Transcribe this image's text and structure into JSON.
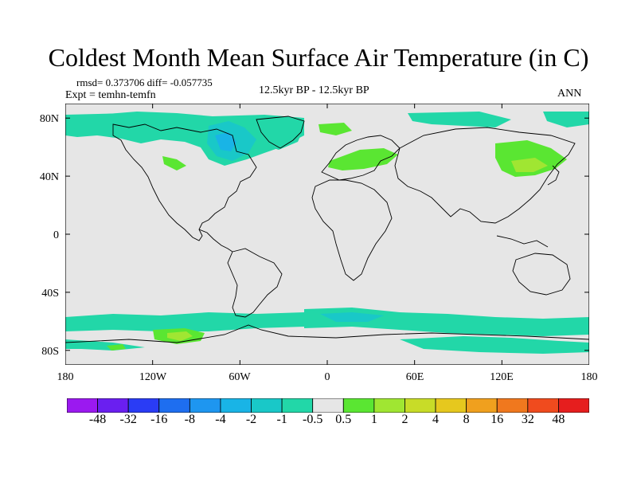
{
  "title": "Coldest Month Mean Surface Air Temperature (in C)",
  "stats": "rmsd= 0.373706 diff= -0.057735",
  "expt": "Expt = temhn-temfn",
  "period": "12.5kyr BP - 12.5kyr BP",
  "season": "ANN",
  "map": {
    "lon_range": [
      -180,
      180
    ],
    "lat_range": [
      -90,
      90
    ],
    "y_ticks": [
      "80N",
      "40N",
      "0",
      "40S",
      "80S"
    ],
    "x_ticks": [
      "180",
      "120W",
      "60W",
      "0",
      "60E",
      "120E",
      "180"
    ],
    "background_color": "#e6e6e6"
  },
  "colorbar": {
    "labels": [
      "-48",
      "-32",
      "-16",
      "-8",
      "-4",
      "-2",
      "-1",
      "-0.5",
      "0.5",
      "1",
      "2",
      "4",
      "8",
      "16",
      "32",
      "48"
    ],
    "colors": [
      "#9b19f0",
      "#6a1ff0",
      "#2a3cf5",
      "#1e6ef0",
      "#1e96f0",
      "#19b4e6",
      "#19c8c8",
      "#22d7a8",
      "#e6e6e6",
      "#5ae632",
      "#a0e632",
      "#c8dc28",
      "#e6c81e",
      "#f0a01e",
      "#f0781e",
      "#f04b1e",
      "#e61e1e"
    ]
  },
  "anomaly_regions": [
    {
      "name": "north-america-arctic",
      "level": "-1"
    },
    {
      "name": "greenland-sea",
      "level": "-0.5"
    },
    {
      "name": "europe-russia",
      "level": "0.5"
    },
    {
      "name": "east-asia",
      "level": "1"
    },
    {
      "name": "southern-ocean",
      "level": "-1"
    },
    {
      "name": "antarctic-pacific",
      "level": "1"
    }
  ]
}
